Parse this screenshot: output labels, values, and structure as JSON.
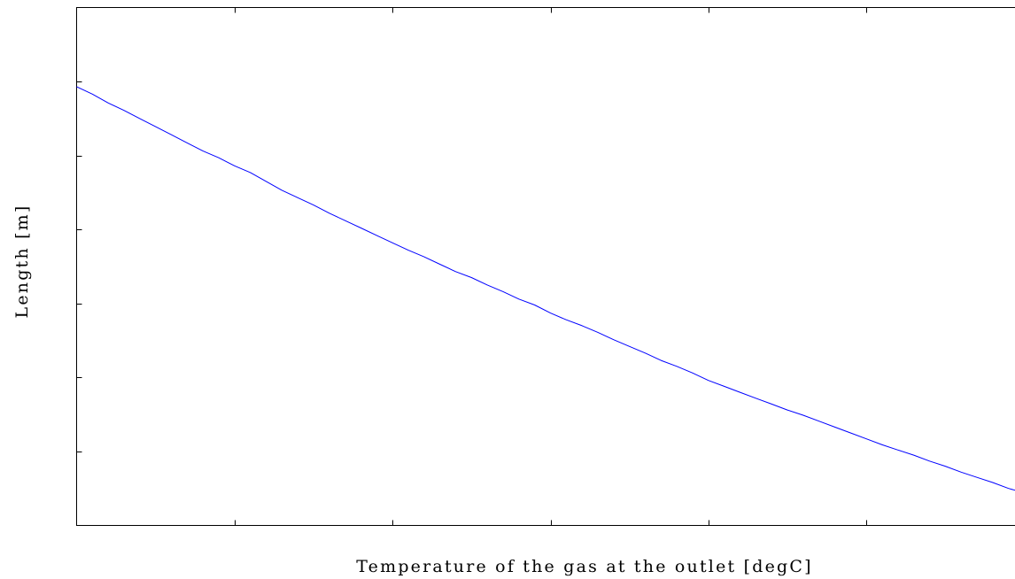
{
  "chart_data": {
    "type": "line",
    "title": "",
    "xlabel": "Temperature of the gas at the outlet [degC]",
    "ylabel": "Length [m]",
    "xlim": [
      0,
      6
    ],
    "ylim": [
      0,
      7
    ],
    "grid": false,
    "x_tick_count": 7,
    "y_tick_count": 8,
    "series": [
      {
        "color": "#0000ff",
        "x": [
          0,
          0.1,
          0.2,
          0.3,
          0.4,
          0.5,
          0.6,
          0.7,
          0.8,
          0.9,
          1.0,
          1.1,
          1.2,
          1.3,
          1.4,
          1.5,
          1.6,
          1.7,
          1.8,
          1.9,
          2.0,
          2.1,
          2.2,
          2.3,
          2.4,
          2.5,
          2.6,
          2.7,
          2.8,
          2.9,
          3.0,
          3.1,
          3.2,
          3.3,
          3.4,
          3.5,
          3.6,
          3.7,
          3.8,
          3.9,
          4.0,
          4.1,
          4.2,
          4.3,
          4.4,
          4.5,
          4.6,
          4.7,
          4.8,
          4.9,
          5.0,
          5.1,
          5.2,
          5.3,
          5.4,
          5.5,
          5.6,
          5.7,
          5.8,
          5.9,
          6.0
        ],
        "y": [
          5.93,
          5.83,
          5.71,
          5.61,
          5.5,
          5.39,
          5.28,
          5.17,
          5.06,
          4.97,
          4.86,
          4.77,
          4.65,
          4.53,
          4.43,
          4.33,
          4.22,
          4.12,
          4.02,
          3.92,
          3.82,
          3.72,
          3.63,
          3.53,
          3.43,
          3.35,
          3.25,
          3.16,
          3.06,
          2.98,
          2.87,
          2.78,
          2.7,
          2.61,
          2.51,
          2.42,
          2.33,
          2.23,
          2.15,
          2.06,
          1.96,
          1.88,
          1.8,
          1.72,
          1.64,
          1.56,
          1.49,
          1.41,
          1.33,
          1.25,
          1.17,
          1.09,
          1.02,
          0.95,
          0.87,
          0.8,
          0.72,
          0.65,
          0.58,
          0.5,
          0.44
        ]
      }
    ]
  }
}
